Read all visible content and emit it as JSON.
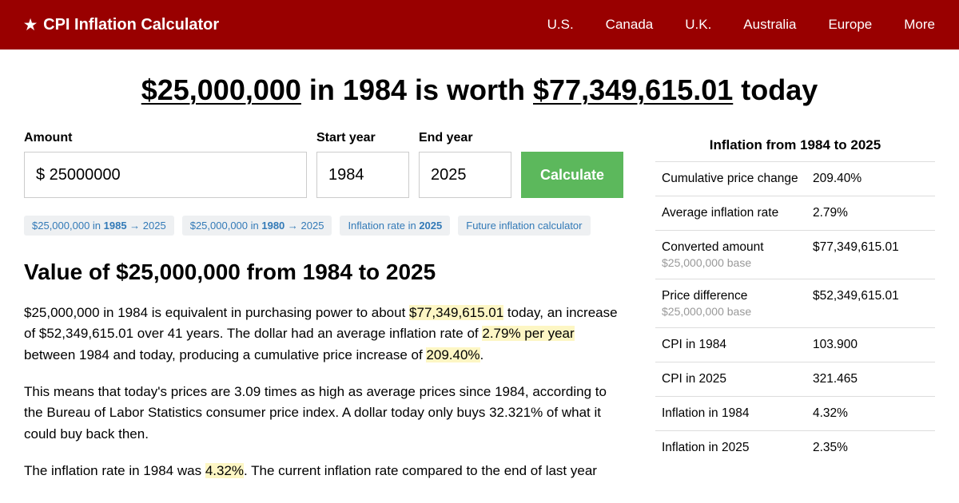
{
  "header": {
    "brand": "CPI Inflation Calculator",
    "nav": [
      "U.S.",
      "Canada",
      "U.K.",
      "Australia",
      "Europe",
      "More"
    ]
  },
  "title": {
    "amount": "$25,000,000",
    "mid1": " in 1984 is worth ",
    "result": "$77,349,615.01",
    "mid2": " today"
  },
  "form": {
    "amount_label": "Amount",
    "amount_value": "$ 25000000",
    "start_label": "Start year",
    "start_value": "1984",
    "end_label": "End year",
    "end_value": "2025",
    "calc_label": "Calculate"
  },
  "chips": [
    {
      "pre": "$25,000,000 in ",
      "b": "1985",
      "post": " → 2025"
    },
    {
      "pre": "$25,000,000 in ",
      "b": "1980",
      "post": " → 2025"
    },
    {
      "pre": "Inflation rate in ",
      "b": "2025",
      "post": ""
    },
    {
      "pre": "Future inflation calculator",
      "b": "",
      "post": ""
    }
  ],
  "section_heading": "Value of $25,000,000 from 1984 to 2025",
  "para1": {
    "a": "$25,000,000 in 1984 is equivalent in purchasing power to about ",
    "h1": "$77,349,615.01",
    "b": " today, an increase of $52,349,615.01 over 41 years. The dollar had an average inflation rate of ",
    "h2": "2.79% per year",
    "c": " between 1984 and today, producing a cumulative price increase of ",
    "h3": "209.40%",
    "d": "."
  },
  "para2": "This means that today's prices are 3.09 times as high as average prices since 1984, according to the Bureau of Labor Statistics consumer price index. A dollar today only buys 32.321% of what it could buy back then.",
  "para3": {
    "a": "The inflation rate in 1984 was ",
    "h1": "4.32%",
    "b": ". The current inflation rate compared to the end of last year"
  },
  "stats": {
    "title": "Inflation from 1984 to 2025",
    "rows": [
      {
        "label": "Cumulative price change",
        "sub": "",
        "value": "209.40%"
      },
      {
        "label": "Average inflation rate",
        "sub": "",
        "value": "2.79%"
      },
      {
        "label": "Converted amount",
        "sub": "$25,000,000 base",
        "value": "$77,349,615.01"
      },
      {
        "label": "Price difference",
        "sub": "$25,000,000 base",
        "value": "$52,349,615.01"
      },
      {
        "label": "CPI in 1984",
        "sub": "",
        "value": "103.900"
      },
      {
        "label": "CPI in 2025",
        "sub": "",
        "value": "321.465"
      },
      {
        "label": "Inflation in 1984",
        "sub": "",
        "value": "4.32%"
      },
      {
        "label": "Inflation in 2025",
        "sub": "",
        "value": "2.35%"
      }
    ]
  }
}
